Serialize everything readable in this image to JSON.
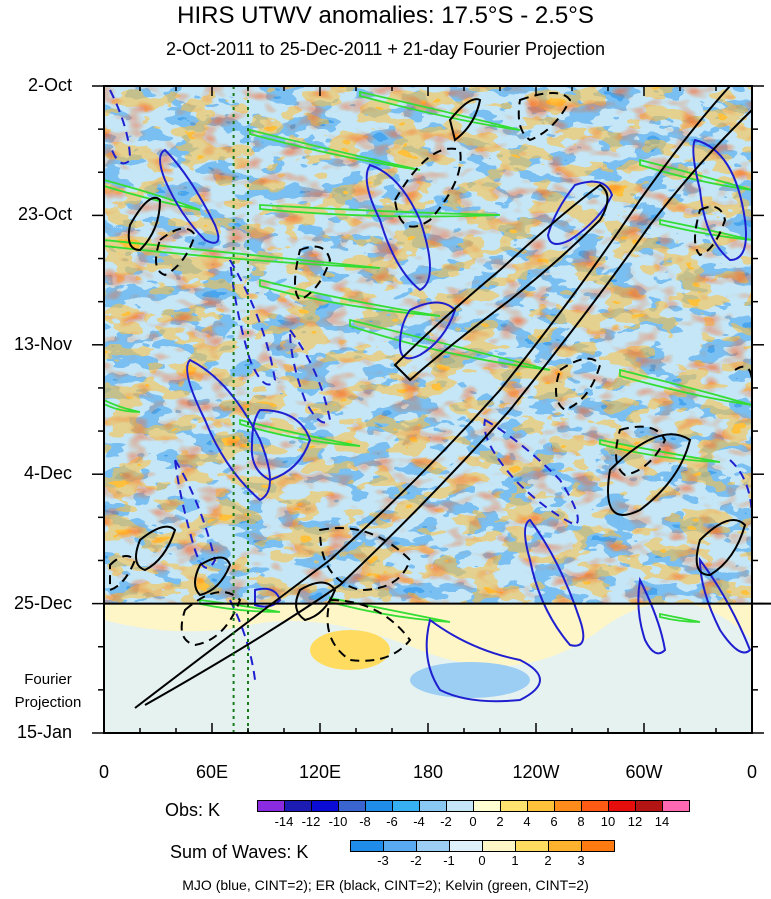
{
  "chart_data": {
    "type": "heatmap",
    "title": "HIRS UTWV anomalies: 17.5°S - 2.5°S",
    "subtitle": "2-Oct-2011 to 25-Dec-2011 + 21-day Fourier Projection",
    "x_tick_labels": [
      "0",
      "60E",
      "120E",
      "180",
      "120W",
      "60W",
      "0"
    ],
    "x_range_deg_east": [
      0,
      360
    ],
    "y_tick_labels": [
      "2-Oct",
      "23-Oct",
      "13-Nov",
      "4-Dec",
      "25-Dec",
      "15-Jan"
    ],
    "y_range_days": [
      0,
      105
    ],
    "projection_start_day": 84,
    "projection_label": [
      "Fourier",
      "Projection"
    ],
    "reference_longitudes_deg_east": [
      72,
      80
    ],
    "obs_colorbar": {
      "title": "Obs: K",
      "levels": [
        "-14",
        "-12",
        "-10",
        "-8",
        "-6",
        "-4",
        "-2",
        "0",
        "2",
        "4",
        "6",
        "8",
        "10",
        "12",
        "14"
      ],
      "colors": [
        "#8a2be2",
        "#1c1cb4",
        "#0b0bd6",
        "#3a64cf",
        "#1e8ce8",
        "#36b0f0",
        "#88c8f2",
        "#c4e6f6",
        "#ffffd2",
        "#ffe36e",
        "#ffc03a",
        "#ff8c1a",
        "#ff5a14",
        "#e60d0d",
        "#b31515",
        "#ff69b4"
      ]
    },
    "waves_colorbar": {
      "title": "Sum of Waves: K",
      "levels": [
        "-3",
        "-2",
        "-1",
        "0",
        "1",
        "2",
        "3"
      ],
      "colors": [
        "#1e8ce8",
        "#59aaf0",
        "#9ccdf3",
        "#dff1fa",
        "#fff6c8",
        "#ffdc60",
        "#ffb22e",
        "#ff7a10"
      ]
    },
    "wave_contours": [
      {
        "name": "MJO",
        "color": "#1f1fd0",
        "cint": 2
      },
      {
        "name": "ER",
        "color": "#000000",
        "cint": 2
      },
      {
        "name": "Kelvin",
        "color": "#33dd33",
        "cint": 2
      }
    ],
    "caption": "MJO (blue, CINT=2); ER (black, CINT=2); Kelvin (green, CINT=2)"
  }
}
